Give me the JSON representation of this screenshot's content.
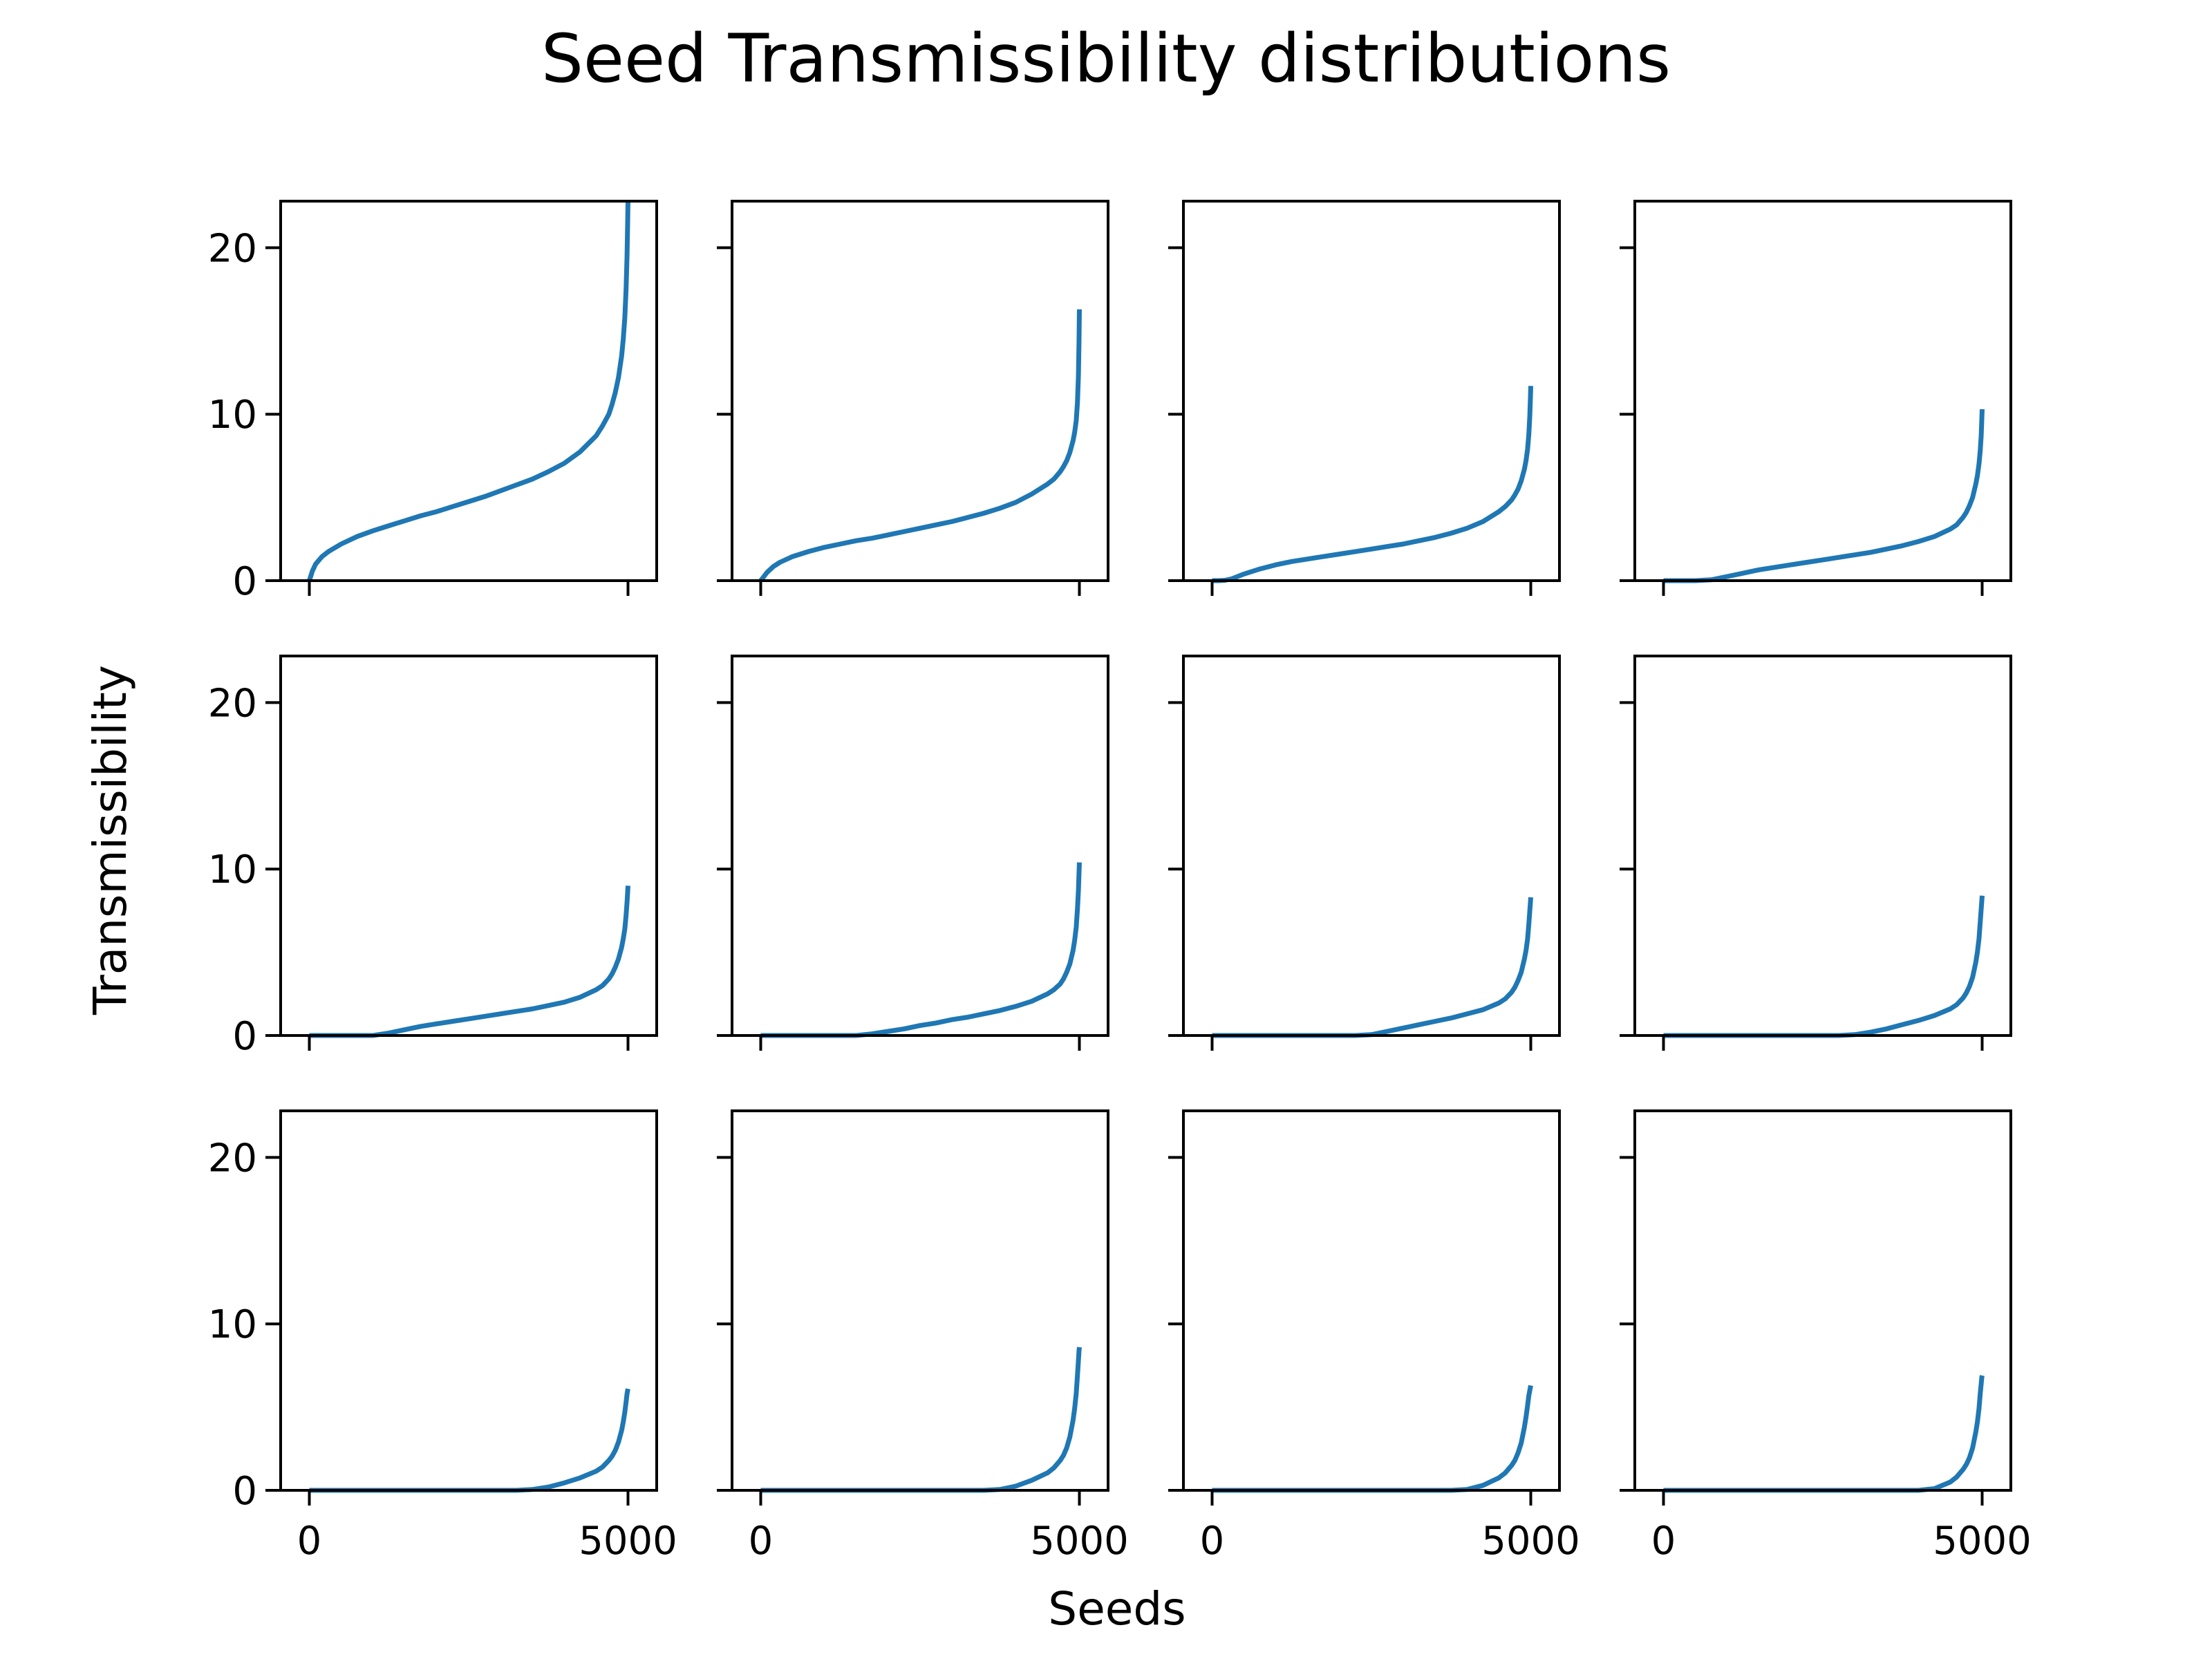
{
  "figure": {
    "title": "Seed Transmissibility distributions",
    "xlabel": "Seeds",
    "ylabel": "Transmissibility",
    "line_color": "#1f77b4"
  },
  "chart_data": {
    "type": "line",
    "layout": {
      "rows": 3,
      "cols": 4,
      "sharex": true,
      "sharey": true
    },
    "xlim": [
      -450,
      5450
    ],
    "ylim": [
      0,
      22.8
    ],
    "xticks": [
      0,
      5000
    ],
    "xtick_labels": [
      "0",
      "5000"
    ],
    "yticks": [
      0,
      10,
      20
    ],
    "ytick_labels": [
      "0",
      "10",
      "20"
    ],
    "grid": false,
    "x": [
      0,
      50,
      100,
      200,
      300,
      500,
      750,
      1000,
      1250,
      1500,
      1750,
      2000,
      2250,
      2500,
      2750,
      3000,
      3250,
      3500,
      3750,
      4000,
      4250,
      4500,
      4600,
      4700,
      4750,
      4800,
      4850,
      4900,
      4925,
      4950,
      4970,
      4985,
      4995,
      5000
    ],
    "panels": [
      {
        "values": [
          0,
          0.6,
          1.0,
          1.45,
          1.75,
          2.2,
          2.65,
          3.0,
          3.3,
          3.6,
          3.9,
          4.15,
          4.45,
          4.75,
          5.05,
          5.4,
          5.75,
          6.1,
          6.55,
          7.05,
          7.75,
          8.7,
          9.3,
          10.0,
          10.6,
          11.3,
          12.2,
          13.5,
          14.5,
          15.8,
          17.5,
          19.5,
          21.5,
          22.8
        ]
      },
      {
        "values": [
          0,
          0.25,
          0.5,
          0.85,
          1.1,
          1.45,
          1.75,
          2.0,
          2.2,
          2.4,
          2.55,
          2.75,
          2.95,
          3.15,
          3.35,
          3.55,
          3.8,
          4.05,
          4.35,
          4.7,
          5.2,
          5.8,
          6.1,
          6.55,
          6.85,
          7.2,
          7.7,
          8.4,
          8.9,
          9.6,
          10.7,
          12.3,
          14.5,
          16.3
        ]
      },
      {
        "values": [
          0,
          0,
          0,
          0.02,
          0.1,
          0.4,
          0.7,
          0.95,
          1.15,
          1.3,
          1.45,
          1.6,
          1.75,
          1.9,
          2.05,
          2.2,
          2.4,
          2.6,
          2.85,
          3.15,
          3.55,
          4.15,
          4.45,
          4.85,
          5.15,
          5.5,
          6.0,
          6.7,
          7.2,
          7.9,
          8.8,
          9.9,
          11.0,
          11.7
        ]
      },
      {
        "values": [
          0,
          0,
          0,
          0,
          0,
          0,
          0.05,
          0.25,
          0.45,
          0.65,
          0.8,
          0.95,
          1.1,
          1.25,
          1.4,
          1.55,
          1.7,
          1.9,
          2.1,
          2.35,
          2.65,
          3.1,
          3.35,
          3.8,
          4.1,
          4.5,
          5.0,
          5.8,
          6.3,
          7.0,
          7.8,
          8.7,
          9.7,
          10.3
        ]
      },
      {
        "values": [
          0,
          0,
          0,
          0,
          0,
          0,
          0,
          0,
          0.15,
          0.35,
          0.55,
          0.7,
          0.85,
          1.0,
          1.15,
          1.3,
          1.45,
          1.6,
          1.8,
          2.0,
          2.3,
          2.75,
          3.0,
          3.4,
          3.7,
          4.1,
          4.6,
          5.3,
          5.8,
          6.4,
          7.2,
          8.0,
          8.6,
          9.0
        ]
      },
      {
        "values": [
          0,
          0,
          0,
          0,
          0,
          0,
          0,
          0,
          0,
          0,
          0.1,
          0.25,
          0.4,
          0.6,
          0.75,
          0.95,
          1.1,
          1.3,
          1.5,
          1.75,
          2.05,
          2.5,
          2.75,
          3.1,
          3.4,
          3.8,
          4.3,
          5.1,
          5.7,
          6.5,
          7.6,
          8.7,
          9.8,
          10.4
        ]
      },
      {
        "values": [
          0,
          0,
          0,
          0,
          0,
          0,
          0,
          0,
          0,
          0,
          0,
          0,
          0,
          0.05,
          0.25,
          0.45,
          0.65,
          0.85,
          1.05,
          1.3,
          1.55,
          1.95,
          2.2,
          2.6,
          2.9,
          3.3,
          3.8,
          4.6,
          5.1,
          5.8,
          6.7,
          7.5,
          8.0,
          8.3
        ]
      },
      {
        "values": [
          0,
          0,
          0,
          0,
          0,
          0,
          0,
          0,
          0,
          0,
          0,
          0,
          0,
          0,
          0,
          0.05,
          0.2,
          0.4,
          0.65,
          0.9,
          1.2,
          1.6,
          1.85,
          2.25,
          2.55,
          2.95,
          3.5,
          4.4,
          5.0,
          5.8,
          6.8,
          7.6,
          8.1,
          8.4
        ]
      },
      {
        "values": [
          0,
          0,
          0,
          0,
          0,
          0,
          0,
          0,
          0,
          0,
          0,
          0,
          0,
          0,
          0,
          0,
          0,
          0.05,
          0.2,
          0.45,
          0.75,
          1.15,
          1.4,
          1.8,
          2.05,
          2.4,
          2.9,
          3.6,
          4.1,
          4.7,
          5.3,
          5.8,
          6.0,
          6.1
        ]
      },
      {
        "values": [
          0,
          0,
          0,
          0,
          0,
          0,
          0,
          0,
          0,
          0,
          0,
          0,
          0,
          0,
          0,
          0,
          0,
          0,
          0.05,
          0.25,
          0.6,
          1.05,
          1.35,
          1.8,
          2.1,
          2.55,
          3.2,
          4.2,
          4.9,
          5.8,
          6.9,
          7.8,
          8.4,
          8.6
        ]
      },
      {
        "values": [
          0,
          0,
          0,
          0,
          0,
          0,
          0,
          0,
          0,
          0,
          0,
          0,
          0,
          0,
          0,
          0,
          0,
          0,
          0,
          0.05,
          0.3,
          0.75,
          1.05,
          1.5,
          1.8,
          2.25,
          2.85,
          3.8,
          4.4,
          5.1,
          5.7,
          6.0,
          6.2,
          6.3
        ]
      },
      {
        "values": [
          0,
          0,
          0,
          0,
          0,
          0,
          0,
          0,
          0,
          0,
          0,
          0,
          0,
          0,
          0,
          0,
          0,
          0,
          0,
          0,
          0.1,
          0.5,
          0.8,
          1.25,
          1.55,
          1.95,
          2.55,
          3.5,
          4.1,
          4.9,
          5.8,
          6.4,
          6.8,
          6.9
        ]
      }
    ]
  }
}
